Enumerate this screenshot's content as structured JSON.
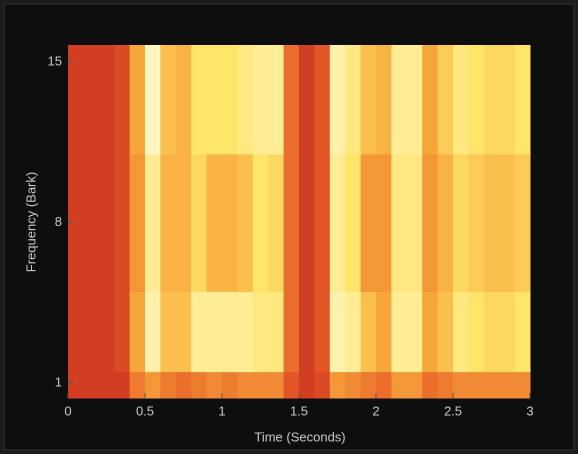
{
  "chart_data": {
    "type": "heatmap",
    "x_label": "Time (Seconds)",
    "y_label": "Frequency (Bark)",
    "xlim": [
      0,
      3
    ],
    "xticks": [
      0,
      0.5,
      1,
      1.5,
      2,
      2.5,
      3
    ],
    "ylim": [
      0.35,
      15.75
    ],
    "yticks": [
      1,
      8,
      15
    ],
    "xbins": [
      0,
      0.1,
      0.2,
      0.3,
      0.4,
      0.5,
      0.6,
      0.7,
      0.8,
      0.9,
      1,
      1.1,
      1.2,
      1.3,
      1.4,
      1.5,
      1.6,
      1.7,
      1.8,
      1.9,
      2,
      2.1,
      2.2,
      2.3,
      2.4,
      2.5,
      2.6,
      2.7,
      2.8,
      2.9,
      3
    ],
    "ybins": [
      0.35,
      1.5,
      5,
      11,
      15.75
    ],
    "colormap": [
      "#c4281c",
      "#e8602a",
      "#f7a63a",
      "#ffe46a",
      "#fffad8"
    ],
    "z": [
      [
        0.1,
        0.1,
        0.1,
        0.1,
        0.35,
        0.45,
        0.35,
        0.3,
        0.35,
        0.4,
        0.35,
        0.4,
        0.4,
        0.4,
        0.2,
        0.1,
        0.15,
        0.45,
        0.4,
        0.35,
        0.3,
        0.45,
        0.45,
        0.3,
        0.35,
        0.4,
        0.4,
        0.4,
        0.4,
        0.4
      ],
      [
        0.1,
        0.1,
        0.1,
        0.15,
        0.5,
        0.9,
        0.6,
        0.6,
        0.85,
        0.85,
        0.85,
        0.85,
        0.8,
        0.8,
        0.3,
        0.1,
        0.2,
        0.9,
        0.85,
        0.6,
        0.5,
        0.85,
        0.85,
        0.5,
        0.6,
        0.8,
        0.75,
        0.7,
        0.7,
        0.75
      ],
      [
        0.1,
        0.1,
        0.1,
        0.15,
        0.45,
        0.85,
        0.55,
        0.55,
        0.7,
        0.55,
        0.55,
        0.6,
        0.75,
        0.7,
        0.3,
        0.1,
        0.2,
        0.85,
        0.75,
        0.45,
        0.45,
        0.8,
        0.8,
        0.45,
        0.55,
        0.7,
        0.65,
        0.6,
        0.6,
        0.65
      ],
      [
        0.1,
        0.1,
        0.1,
        0.15,
        0.5,
        0.95,
        0.6,
        0.55,
        0.75,
        0.75,
        0.75,
        0.8,
        0.85,
        0.85,
        0.3,
        0.1,
        0.2,
        0.9,
        0.8,
        0.6,
        0.55,
        0.85,
        0.85,
        0.5,
        0.65,
        0.8,
        0.75,
        0.7,
        0.7,
        0.75
      ]
    ]
  }
}
